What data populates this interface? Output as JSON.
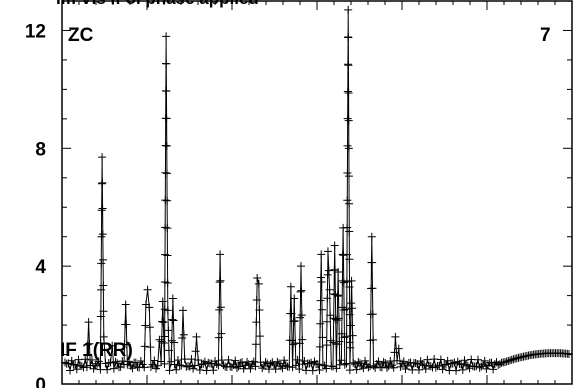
{
  "page_title": "Im Vis if  ol phase applied",
  "chart_data": {
    "type": "line",
    "marker": "plus",
    "title": "",
    "xlabel": "",
    "ylabel": "",
    "ylim": [
      0,
      13
    ],
    "yticks": [
      0,
      4,
      8,
      12
    ],
    "ytick_labels": [
      "0",
      "4",
      "8",
      "12"
    ],
    "x_points": 300,
    "grid": false,
    "annotations": {
      "stokes": "ZC",
      "panel_number": "7",
      "baseline": "IF 1(RR)"
    },
    "series": [
      {
        "baseline": 0.65,
        "wave": {
          "start_index": 255,
          "peak_index": 290,
          "peak_value": 1.05
        },
        "spikes": [
          [
            14,
            2.1
          ],
          [
            22,
            7.7
          ],
          [
            23,
            1.6
          ],
          [
            28,
            1.3
          ],
          [
            36,
            2.7
          ],
          [
            48,
            2.7
          ],
          [
            49,
            3.2
          ],
          [
            50,
            2.6
          ],
          [
            56,
            1.5
          ],
          [
            58,
            2.8
          ],
          [
            60,
            11.8
          ],
          [
            61,
            2.5
          ],
          [
            64,
            2.9
          ],
          [
            70,
            2.5
          ],
          [
            78,
            1.6
          ],
          [
            92,
            4.4
          ],
          [
            114,
            3.6
          ],
          [
            115,
            3.4
          ],
          [
            134,
            3.3
          ],
          [
            136,
            2.9
          ],
          [
            140,
            4.0
          ],
          [
            152,
            4.4
          ],
          [
            156,
            4.5
          ],
          [
            157,
            3.2
          ],
          [
            160,
            4.7
          ],
          [
            162,
            3.8
          ],
          [
            165,
            5.3
          ],
          [
            168,
            12.7
          ],
          [
            170,
            3.5
          ],
          [
            182,
            5.0
          ],
          [
            196,
            1.6
          ],
          [
            198,
            1.2
          ]
        ]
      }
    ]
  }
}
